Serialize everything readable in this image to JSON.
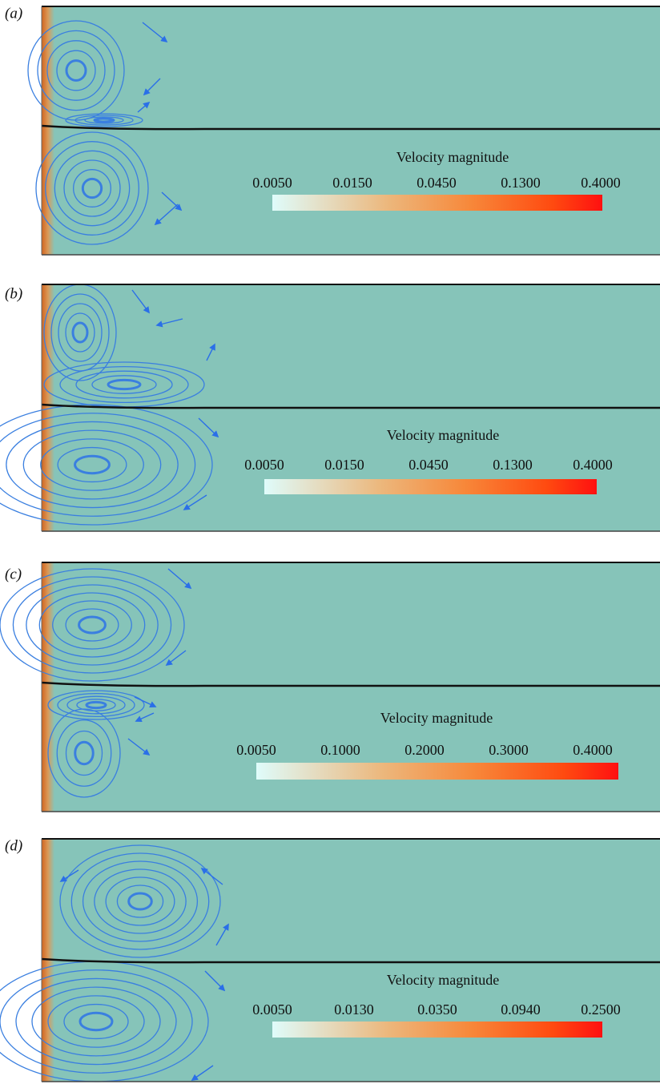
{
  "panels": [
    {
      "label": "(a)",
      "colorbar": {
        "title": "Velocity magnitude",
        "ticks": [
          "0.0050",
          "0.0150",
          "0.0450",
          "0.1300",
          "0.4000"
        ]
      }
    },
    {
      "label": "(b)",
      "colorbar": {
        "title": "Velocity magnitude",
        "ticks": [
          "0.0050",
          "0.0150",
          "0.0450",
          "0.1300",
          "0.4000"
        ]
      }
    },
    {
      "label": "(c)",
      "colorbar": {
        "title": "Velocity magnitude",
        "ticks": [
          "0.0050",
          "0.1000",
          "0.2000",
          "0.3000",
          "0.4000"
        ]
      }
    },
    {
      "label": "(d)",
      "colorbar": {
        "title": "Velocity magnitude",
        "ticks": [
          "0.0050",
          "0.0130",
          "0.0350",
          "0.0940",
          "0.2500"
        ]
      }
    }
  ]
}
